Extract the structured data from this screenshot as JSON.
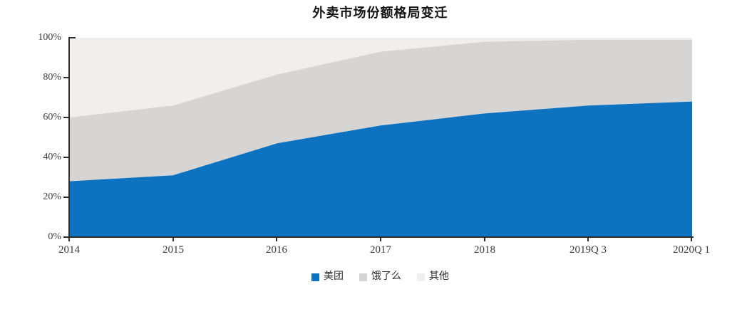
{
  "title": "外卖市场份额格局变迁",
  "colors": {
    "axis": "#2e2e2e",
    "tick_label": "#3c3c3c",
    "title_text": "#141414",
    "background": "#ffffff"
  },
  "chart_data": {
    "type": "area",
    "stacked": true,
    "normalized_percent": true,
    "title": "外卖市场份额格局变迁",
    "categories": [
      "2014",
      "2015",
      "2016",
      "2017",
      "2018",
      "2019Q 3",
      "2020Q 1"
    ],
    "series": [
      {
        "name": "美团",
        "color": "#0d72bf",
        "values": [
          28,
          31,
          47,
          56,
          62,
          66,
          68
        ]
      },
      {
        "name": "饿了么",
        "color": "#d6d5d3",
        "values": [
          32,
          35,
          34.5,
          37,
          36,
          33,
          31
        ]
      },
      {
        "name": "其他",
        "color": "#f0efed",
        "values": [
          40,
          34,
          18.5,
          7,
          2,
          1,
          1
        ]
      }
    ],
    "xlabel": "",
    "ylabel": "",
    "ylim": [
      0,
      100
    ],
    "y_ticks": [
      "0%",
      "20%",
      "40%",
      "60%",
      "80%",
      "100%"
    ],
    "grid": false,
    "legend_position": "bottom"
  }
}
